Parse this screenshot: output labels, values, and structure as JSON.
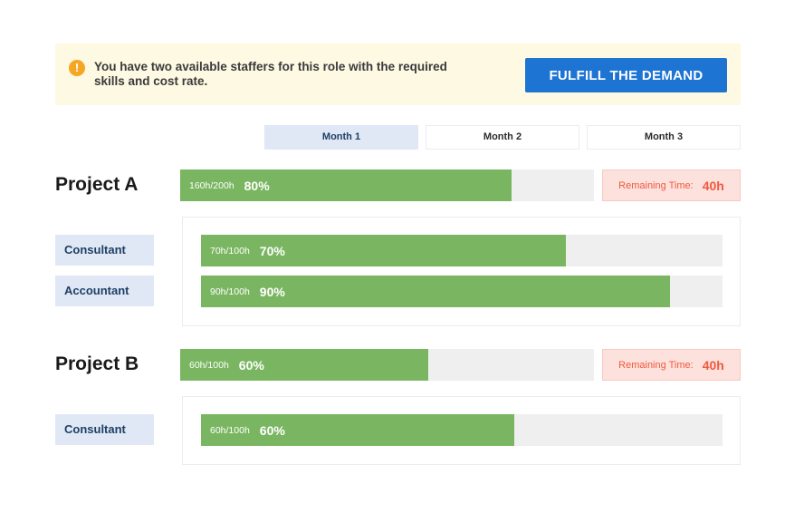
{
  "alert": {
    "icon": "warning-icon",
    "message": "You have two available staffers for this role with the required skills and cost rate.",
    "action_label": "FULFILL THE DEMAND"
  },
  "tabs": [
    {
      "label": "Month 1",
      "active": true
    },
    {
      "label": "Month 2",
      "active": false
    },
    {
      "label": "Month 3",
      "active": false
    }
  ],
  "projects": [
    {
      "name": "Project A",
      "hours": "160h/200h",
      "percent_label": "80%",
      "progress": 0.8,
      "remaining_label": "Remaining Time:",
      "remaining_value": "40h",
      "roles": [
        {
          "name": "Consultant",
          "hours": "70h/100h",
          "percent_label": "70%",
          "progress": 0.7
        },
        {
          "name": "Accountant",
          "hours": "90h/100h",
          "percent_label": "90%",
          "progress": 0.9
        }
      ]
    },
    {
      "name": "Project B",
      "hours": "60h/100h",
      "percent_label": "60%",
      "progress": 0.6,
      "remaining_label": "Remaining Time:",
      "remaining_value": "40h",
      "roles": [
        {
          "name": "Consultant",
          "hours": "60h/100h",
          "percent_label": "60%",
          "progress": 0.6
        }
      ]
    }
  ],
  "colors": {
    "accent": "#1e74d2",
    "progress": "#7ab661",
    "alert_bg": "#fdf9e3",
    "warning": "#f5a623",
    "remaining_text": "#ef5a40",
    "chip_bg": "#dfe8f4"
  }
}
